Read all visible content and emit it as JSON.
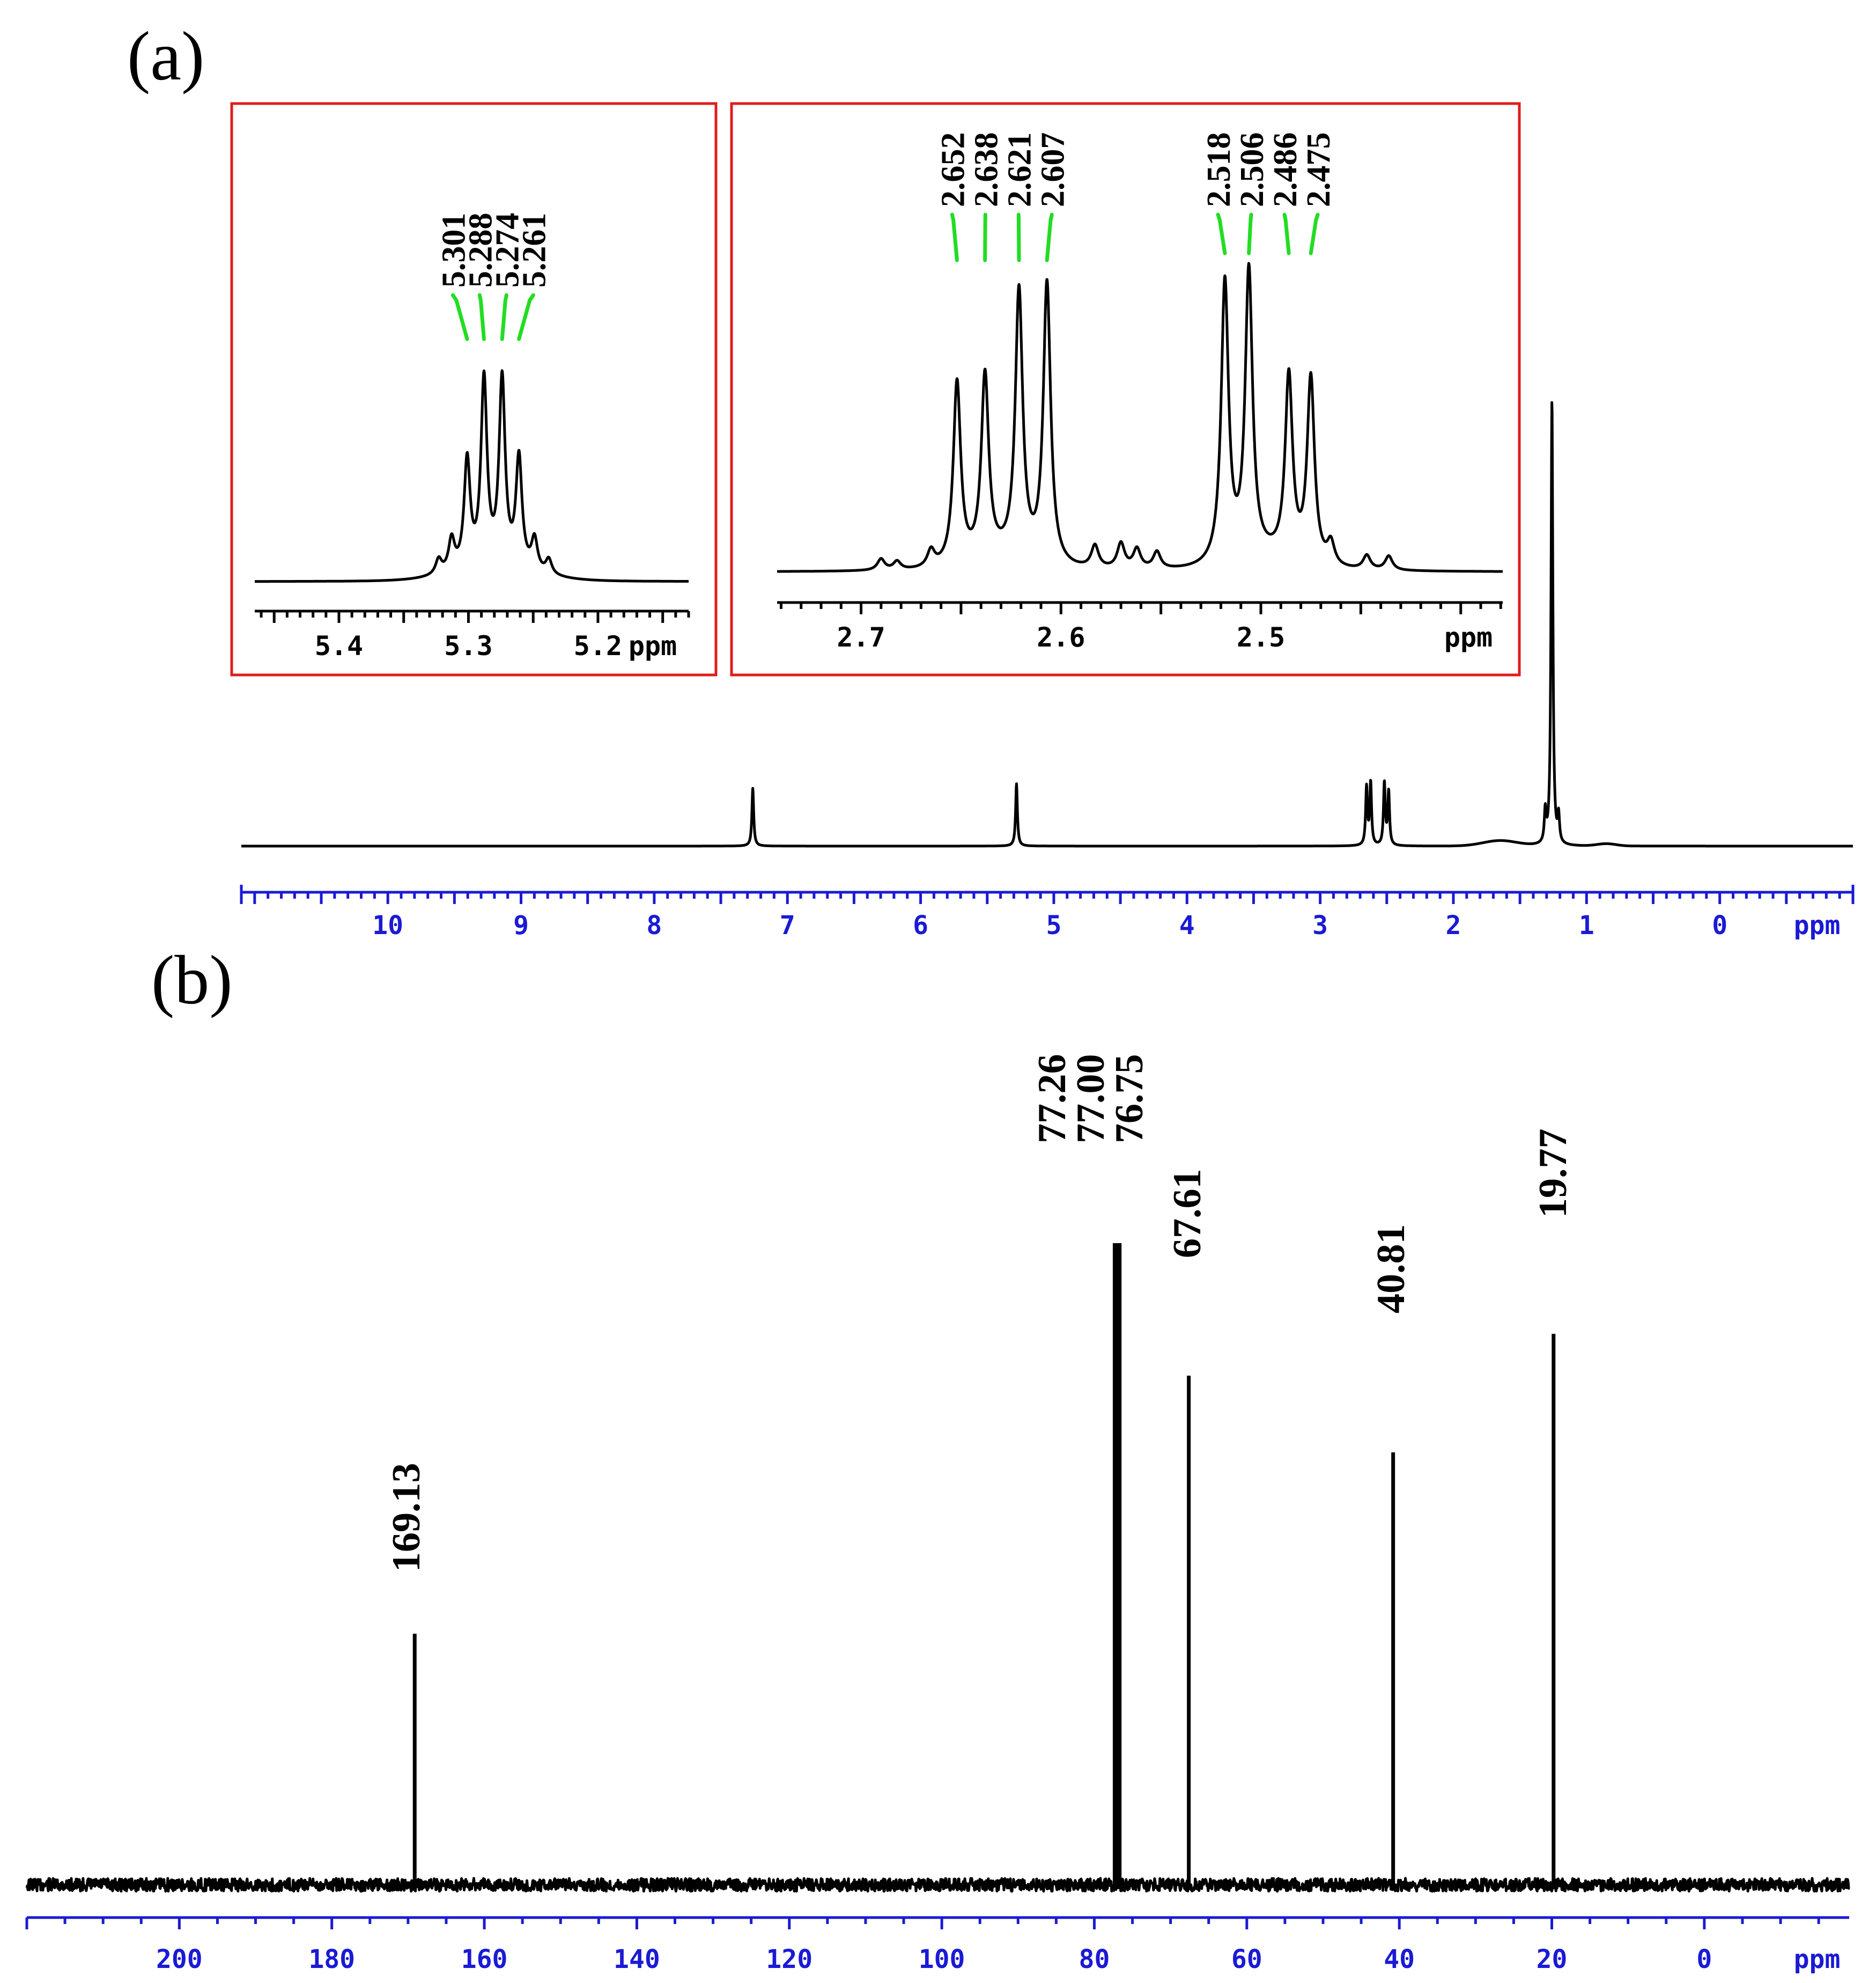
{
  "colors": {
    "axis": "#1a1ad6",
    "inset_border": "#e01c1c",
    "peak_marker": "#22dd22",
    "trace": "#000000"
  },
  "chart_data": [
    {
      "id": "a",
      "panel_label": "(a)",
      "type": "line",
      "xlabel": "ppm",
      "xlim": [
        11.1,
        -1.0
      ],
      "x_reversed": true,
      "ticks": [
        "10",
        "9",
        "8",
        "7",
        "6",
        "5",
        "4",
        "3",
        "2",
        "1",
        "0"
      ],
      "peaks": [
        {
          "x": 7.26,
          "height": 0.13
        },
        {
          "x": 5.28,
          "height": 0.14
        },
        {
          "x": 2.652,
          "height": 0.13
        },
        {
          "x": 2.621,
          "height": 0.14
        },
        {
          "x": 2.518,
          "height": 0.14
        },
        {
          "x": 2.486,
          "height": 0.12
        },
        {
          "x": 1.26,
          "height": 1.0
        },
        {
          "x": 1.31,
          "height": 0.07
        },
        {
          "x": 1.21,
          "height": 0.06
        }
      ],
      "insets": [
        {
          "id": "inset-1",
          "xlabel": "ppm",
          "xlim": [
            5.465,
            5.13
          ],
          "ticks": [
            "5.4",
            "5.3",
            "5.2"
          ],
          "peak_labels": [
            "5.301",
            "5.288",
            "5.274",
            "5.261"
          ],
          "peaks": [
            {
              "x": 5.301,
              "height": 0.58
            },
            {
              "x": 5.288,
              "height": 1.0
            },
            {
              "x": 5.274,
              "height": 1.0
            },
            {
              "x": 5.261,
              "height": 0.59
            },
            {
              "x": 5.313,
              "height": 0.17
            },
            {
              "x": 5.249,
              "height": 0.17
            },
            {
              "x": 5.323,
              "height": 0.08
            },
            {
              "x": 5.238,
              "height": 0.08
            }
          ]
        },
        {
          "id": "inset-2",
          "xlabel": "ppm",
          "xlim": [
            2.742,
            2.379
          ],
          "ticks": [
            "2.7",
            "2.6",
            "2.5"
          ],
          "peak_labels": [
            "2.652",
            "2.638",
            "2.621",
            "2.607",
            "2.518",
            "2.506",
            "2.486",
            "2.475"
          ],
          "peaks": [
            {
              "x": 2.652,
              "height": 0.65
            },
            {
              "x": 2.638,
              "height": 0.65
            },
            {
              "x": 2.621,
              "height": 0.95
            },
            {
              "x": 2.607,
              "height": 1.0
            },
            {
              "x": 2.518,
              "height": 1.0
            },
            {
              "x": 2.506,
              "height": 1.02
            },
            {
              "x": 2.486,
              "height": 0.65
            },
            {
              "x": 2.475,
              "height": 0.66
            },
            {
              "x": 2.583,
              "height": 0.08
            },
            {
              "x": 2.57,
              "height": 0.09
            },
            {
              "x": 2.562,
              "height": 0.07
            },
            {
              "x": 2.552,
              "height": 0.06
            },
            {
              "x": 2.465,
              "height": 0.08
            },
            {
              "x": 2.447,
              "height": 0.05
            },
            {
              "x": 2.436,
              "height": 0.05
            },
            {
              "x": 2.69,
              "height": 0.04
            },
            {
              "x": 2.682,
              "height": 0.03
            },
            {
              "x": 2.665,
              "height": 0.06
            }
          ]
        }
      ]
    },
    {
      "id": "b",
      "panel_label": "(b)",
      "type": "line",
      "xlabel": "ppm",
      "xlim": [
        220,
        -19
      ],
      "x_reversed": true,
      "ticks": [
        "200",
        "180",
        "160",
        "140",
        "120",
        "100",
        "80",
        "60",
        "40",
        "20",
        "0"
      ],
      "peaks": [
        {
          "x": 169.13,
          "label": "169.13",
          "height": 0.36
        },
        {
          "x": 77.26,
          "label": "77.26",
          "height": 0.92
        },
        {
          "x": 77.0,
          "label": "77.00",
          "height": 0.92
        },
        {
          "x": 76.75,
          "label": "76.75",
          "height": 0.92
        },
        {
          "x": 67.61,
          "label": "67.61",
          "height": 0.73
        },
        {
          "x": 40.81,
          "label": "40.81",
          "height": 0.62
        },
        {
          "x": 19.77,
          "label": "19.77",
          "height": 0.79
        }
      ]
    }
  ]
}
